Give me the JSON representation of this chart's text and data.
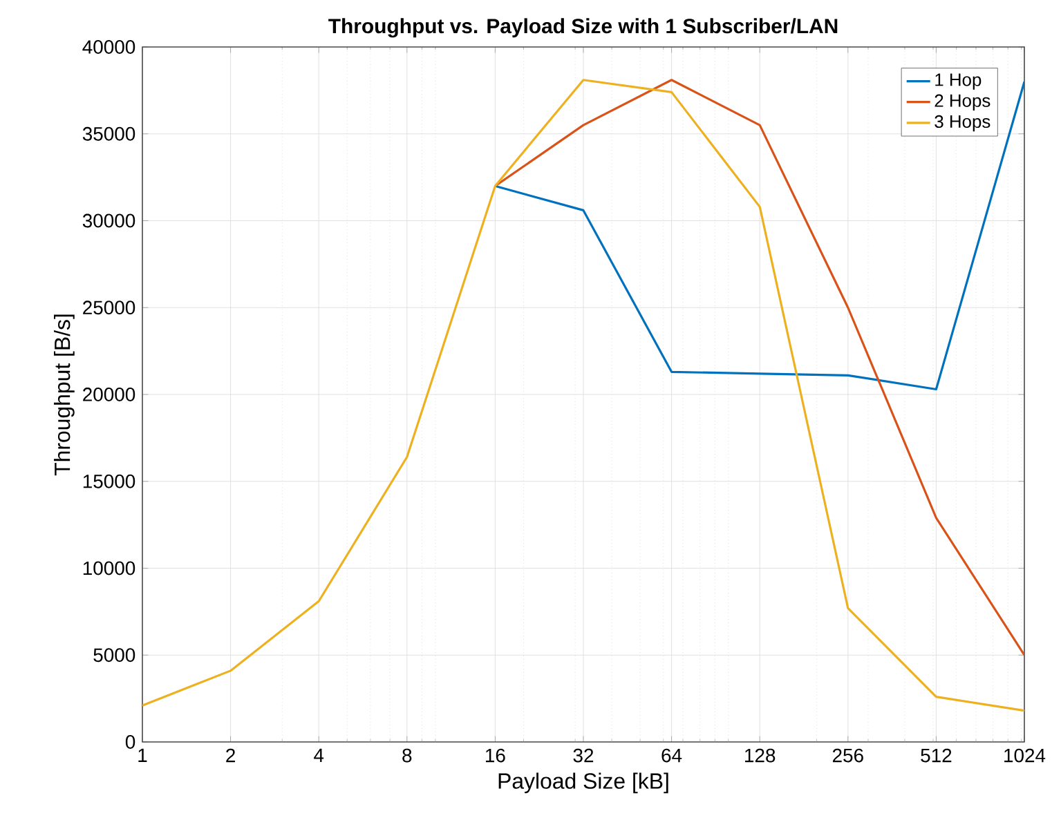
{
  "chart_data": {
    "type": "line",
    "title": "Throughput vs. Payload Size with 1 Subscriber/LAN",
    "xlabel": "Payload Size [kB]",
    "ylabel": "Throughput [B/s]",
    "x": [
      1,
      2,
      4,
      8,
      16,
      32,
      64,
      128,
      256,
      512,
      1024
    ],
    "series": [
      {
        "name": "1 Hop",
        "color": "#0072bd",
        "values": [
          null,
          null,
          null,
          null,
          32000,
          30600,
          21300,
          21200,
          21100,
          20300,
          38000
        ]
      },
      {
        "name": "2 Hops",
        "color": "#d95319",
        "values": [
          null,
          null,
          null,
          null,
          32000,
          35500,
          38100,
          35500,
          25000,
          12900,
          5000
        ]
      },
      {
        "name": "3 Hops",
        "color": "#edb120",
        "values": [
          2100,
          4100,
          8100,
          16400,
          32000,
          38100,
          37400,
          30800,
          7700,
          2600,
          1800
        ]
      }
    ],
    "log": "x",
    "xlim": [
      1,
      1024
    ],
    "ylim": [
      0,
      40000
    ],
    "xticks": [
      1,
      2,
      4,
      8,
      16,
      32,
      64,
      128,
      256,
      512,
      1024
    ],
    "yticks": [
      0,
      5000,
      10000,
      15000,
      20000,
      25000,
      30000,
      35000,
      40000
    ],
    "grid": true,
    "legend": "top right"
  }
}
